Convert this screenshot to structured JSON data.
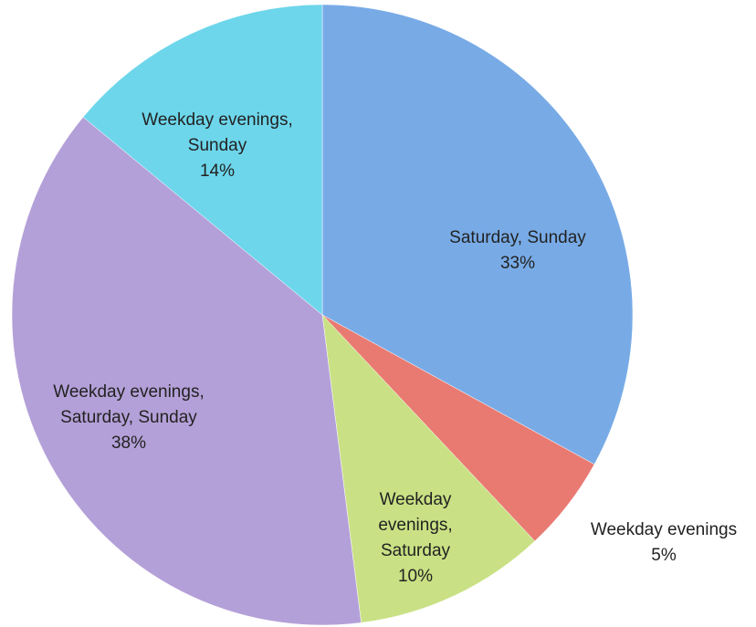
{
  "chart_data": {
    "type": "pie",
    "categories": [
      "Saturday, Sunday",
      "Weekday evenings",
      "Weekday evenings, Saturday",
      "Weekday evenings, Saturday, Sunday",
      "Weekday evenings, Sunday"
    ],
    "values": [
      33,
      5,
      10,
      38,
      14
    ],
    "value_labels": [
      "33%",
      "5%",
      "10%",
      "38%",
      "14%"
    ],
    "colors": [
      "#78abe6",
      "#e87a72",
      "#c9e184",
      "#b4a0d8",
      "#6dd6eb"
    ]
  }
}
